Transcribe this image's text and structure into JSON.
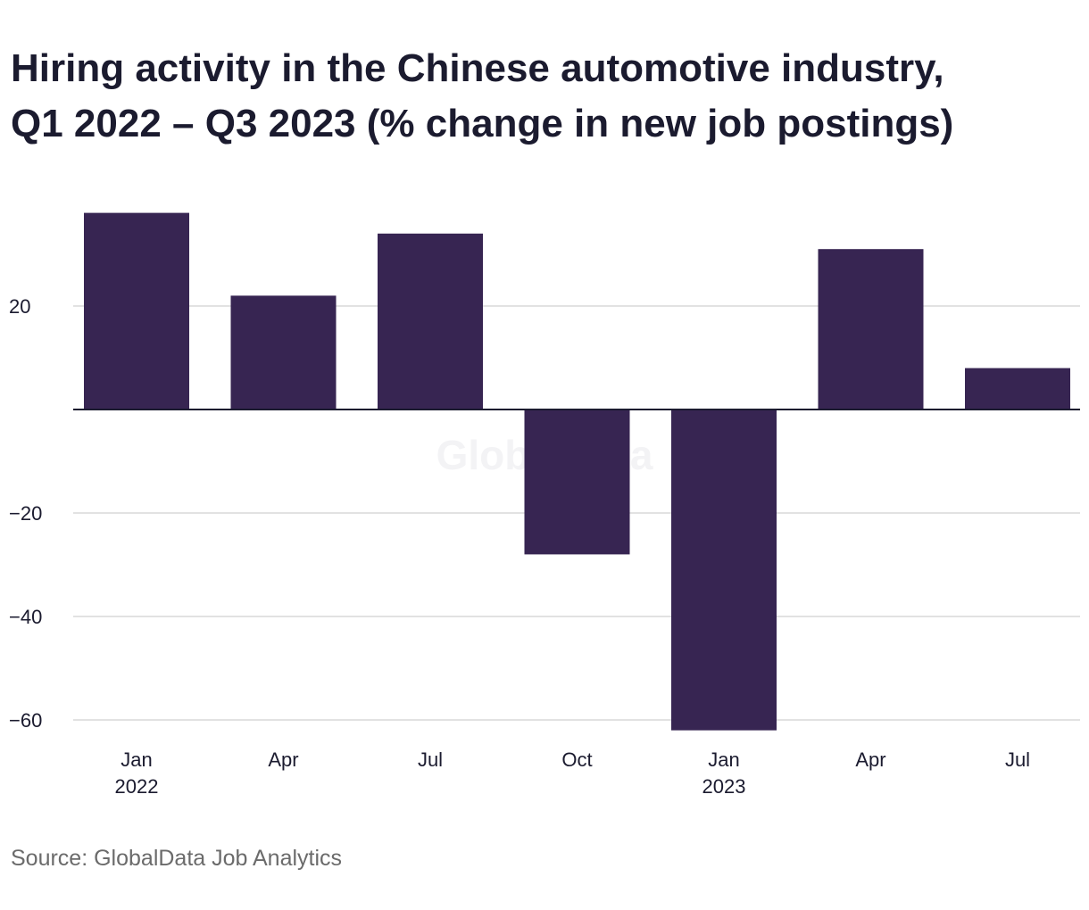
{
  "title_line1": "Hiring activity in the Chinese automotive industry,",
  "title_line2": "Q1 2022 – Q3 2023 (% change in new job postings)",
  "source": "Source: GlobalData Job Analytics",
  "watermark": "GlobalData",
  "colors": {
    "bar": "#372552",
    "grid": "#d9d9d9",
    "zero_line": "#1b1b2f"
  },
  "chart_data": {
    "type": "bar",
    "title": "Hiring activity in the Chinese automotive industry, Q1 2022 – Q3 2023 (% change in new job postings)",
    "xlabel": "",
    "ylabel": "",
    "categories": [
      "Jan 2022",
      "Apr 2022",
      "Jul 2022",
      "Oct 2022",
      "Jan 2023",
      "Apr 2023",
      "Jul 2023"
    ],
    "x_tick_labels": [
      {
        "line1": "Jan",
        "line2": "2022"
      },
      {
        "line1": "Apr",
        "line2": ""
      },
      {
        "line1": "Jul",
        "line2": ""
      },
      {
        "line1": "Oct",
        "line2": ""
      },
      {
        "line1": "Jan",
        "line2": "2023"
      },
      {
        "line1": "Apr",
        "line2": ""
      },
      {
        "line1": "Jul",
        "line2": ""
      }
    ],
    "values": [
      38,
      22,
      34,
      -28,
      -62,
      31,
      8
    ],
    "y_ticks": [
      20,
      -20,
      -40,
      -60
    ],
    "y_tick_labels": [
      "20",
      "−20",
      "−40",
      "−60"
    ],
    "ylim": [
      -62,
      42
    ],
    "grid": true,
    "legend": "none"
  }
}
